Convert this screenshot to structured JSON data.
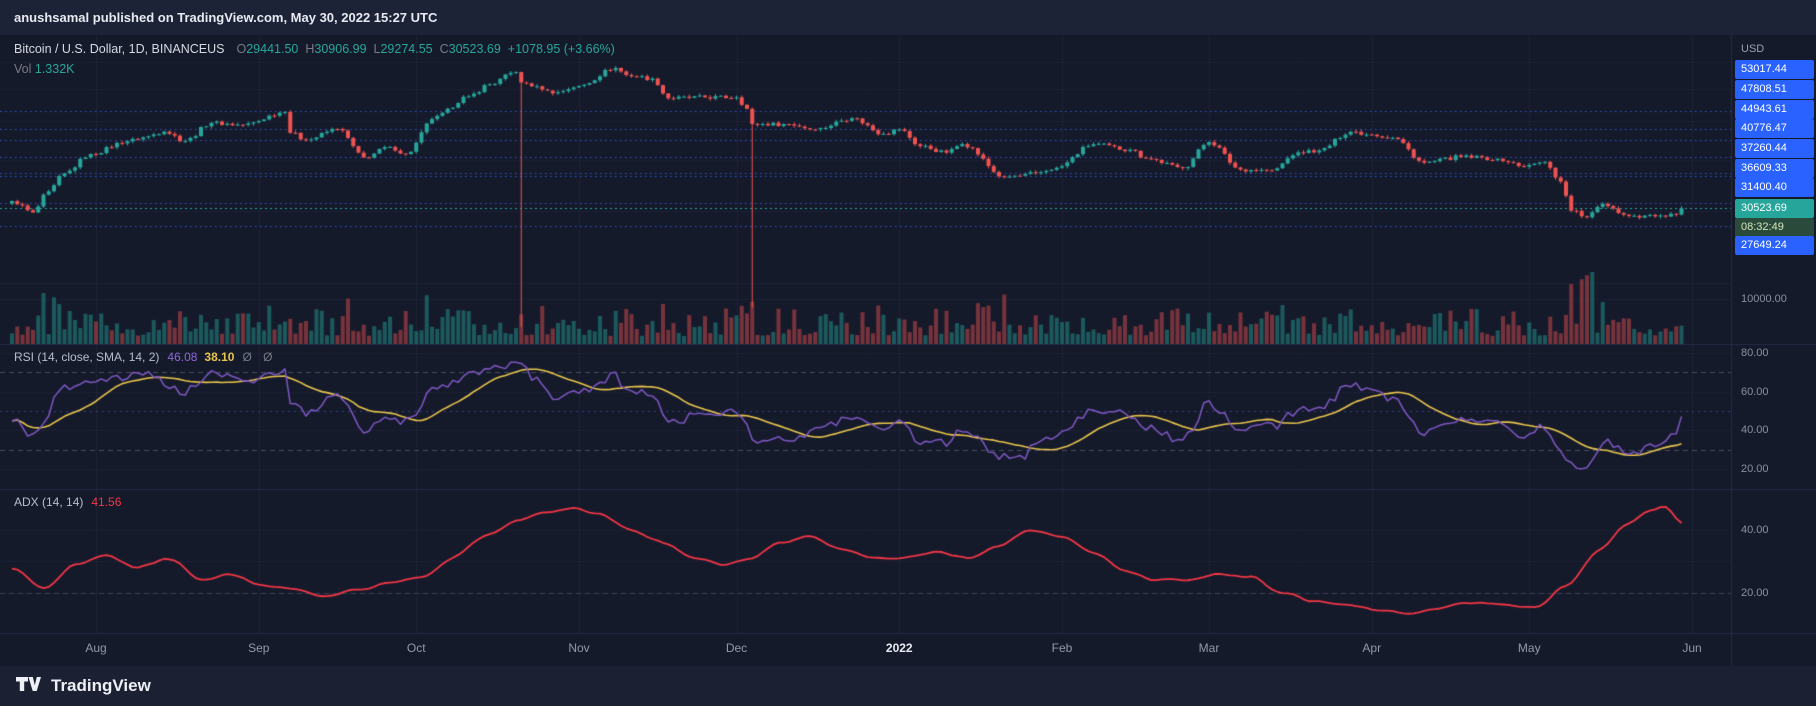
{
  "banner": {
    "text": "anushsamal published on TradingView.com, May 30, 2022 15:27 UTC"
  },
  "legend": {
    "symbol": "Bitcoin / U.S. Dollar, 1D, BINANCEUS",
    "ohlc": [
      {
        "label": "O",
        "value": "29441.50"
      },
      {
        "label": "H",
        "value": "30906.99"
      },
      {
        "label": "L",
        "value": "29274.55"
      },
      {
        "label": "C",
        "value": "30523.69"
      }
    ],
    "change": "+1078.95 (+3.66%)",
    "vol_label": "Vol",
    "vol_value": "1.332K"
  },
  "indicators": {
    "rsi": {
      "title": "RSI (14, close, SMA, 14, 2)",
      "value": "46.08",
      "ma_value": "38.10",
      "hidden": "Ø Ø"
    },
    "adx": {
      "title": "ADX (14, 14)",
      "value": "41.56"
    }
  },
  "axis": {
    "currency": "USD",
    "levels": [
      "53017.44",
      "47808.51",
      "44943.61",
      "40776.47",
      "37260.44",
      "36609.33",
      "31400.40"
    ],
    "last_price": "30523.69",
    "countdown": "08:32:49",
    "level_below": "27649.24",
    "volume_label": "10000.00",
    "rsi_labels": [
      "80.00",
      "60.00",
      "40.00",
      "20.00"
    ],
    "adx_labels": [
      "40.00",
      "20.00"
    ]
  },
  "time_axis": {
    "labels": [
      {
        "text": "Aug",
        "day": 16
      },
      {
        "text": "Sep",
        "day": 47
      },
      {
        "text": "Oct",
        "day": 77
      },
      {
        "text": "Nov",
        "day": 108
      },
      {
        "text": "Dec",
        "day": 138
      },
      {
        "text": "2022",
        "day": 169,
        "major": true
      },
      {
        "text": "Feb",
        "day": 200
      },
      {
        "text": "Mar",
        "day": 228
      },
      {
        "text": "Apr",
        "day": 259
      },
      {
        "text": "May",
        "day": 289
      },
      {
        "text": "Jun",
        "day": 320
      }
    ]
  },
  "footer": {
    "brand": "TradingView"
  },
  "colors": {
    "background": "#151a2b",
    "panel": "#1d2336",
    "up": "#26a69a",
    "down": "#ef5350",
    "accent_badge": "#2962ff",
    "last_badge": "#26a69a",
    "countdown_bg": "#2a4a3c",
    "countdown_text": "#d6e4b6",
    "rsi": "#7e57c2",
    "rsi_ma": "#e8c44c",
    "adx": "#f23645",
    "level_line": "#4866ff",
    "axis_text": "#8b90a0"
  },
  "chart_data": {
    "type": "candlestick",
    "symbol": "BTCUSD",
    "exchange": "BINANCEUS",
    "interval": "1D",
    "start_date": "2021-07-16",
    "end_date": "2022-05-30",
    "days": 319,
    "price_scale": "log",
    "price_range": [
      14150,
      80500
    ],
    "volume_axis_max": 16000,
    "last": {
      "open": 29441.5,
      "high": 30906.99,
      "low": 29274.55,
      "close": 30523.69,
      "change": 1078.95,
      "change_pct": 3.66,
      "volume_k": 1.332
    },
    "level_lines": [
      53017.44,
      47808.51,
      44943.61,
      40776.47,
      37260.44,
      36609.33,
      31400.4,
      27649.24
    ],
    "close_keyframes": [
      [
        0,
        31800
      ],
      [
        4,
        29800
      ],
      [
        7,
        33600
      ],
      [
        10,
        37200
      ],
      [
        15,
        41500
      ],
      [
        22,
        44600
      ],
      [
        25,
        45600
      ],
      [
        29,
        47100
      ],
      [
        33,
        44700
      ],
      [
        38,
        49500
      ],
      [
        44,
        48900
      ],
      [
        52,
        52650
      ],
      [
        53,
        46800
      ],
      [
        56,
        44900
      ],
      [
        62,
        47800
      ],
      [
        67,
        40700
      ],
      [
        72,
        43200
      ],
      [
        75,
        41500
      ],
      [
        81,
        51500
      ],
      [
        87,
        57500
      ],
      [
        91,
        61600
      ],
      [
        96,
        65990
      ],
      [
        97,
        62200
      ],
      [
        100,
        60900
      ],
      [
        103,
        58500
      ],
      [
        108,
        61000
      ],
      [
        115,
        67550
      ],
      [
        117,
        64900
      ],
      [
        122,
        63600
      ],
      [
        125,
        56900
      ],
      [
        132,
        57200
      ],
      [
        138,
        57200
      ],
      [
        140,
        53600
      ],
      [
        141,
        49200
      ],
      [
        148,
        49100
      ],
      [
        153,
        47700
      ],
      [
        160,
        50800
      ],
      [
        166,
        46500
      ],
      [
        169,
        47700
      ],
      [
        173,
        43400
      ],
      [
        178,
        41800
      ],
      [
        181,
        43900
      ],
      [
        189,
        36400
      ],
      [
        192,
        36700
      ],
      [
        195,
        37200
      ],
      [
        199,
        38400
      ],
      [
        206,
        43850
      ],
      [
        213,
        42500
      ],
      [
        216,
        40500
      ],
      [
        223,
        38300
      ],
      [
        228,
        44400
      ],
      [
        234,
        38000
      ],
      [
        240,
        37800
      ],
      [
        245,
        41900
      ],
      [
        249,
        42350
      ],
      [
        255,
        47100
      ],
      [
        259,
        46300
      ],
      [
        263,
        45500
      ],
      [
        269,
        39500
      ],
      [
        276,
        40800
      ],
      [
        283,
        40400
      ],
      [
        288,
        38600
      ],
      [
        292,
        39700
      ],
      [
        295,
        35500
      ],
      [
        297,
        30100
      ],
      [
        300,
        29000
      ],
      [
        303,
        31300
      ],
      [
        308,
        29200
      ],
      [
        314,
        29300
      ],
      [
        317,
        29441.5
      ],
      [
        318,
        30523.69
      ]
    ],
    "anomalies": [
      {
        "day": 97,
        "low": 15600,
        "note": "BinanceUS flash-crash wick"
      },
      {
        "day": 141,
        "low": 17400,
        "note": "Dec sell-off glitch wick"
      }
    ],
    "volume_spikes": {
      "8": 1.5,
      "22": 1.5,
      "38": 1.4,
      "52": 1.6,
      "97": 2.1,
      "141": 2.0,
      "189": 1.5,
      "192": 1.5,
      "228": 1.4,
      "297": 1.8,
      "299": 2.0,
      "300": 2.8,
      "301": 1.9,
      "303": 1.5
    },
    "rsi": {
      "range_shown": [
        10,
        84
      ],
      "bands": [
        70,
        50,
        30
      ],
      "last_value": 46.08,
      "ma_last_value": 38.1,
      "keyframes": [
        [
          0,
          46
        ],
        [
          4,
          36
        ],
        [
          10,
          62
        ],
        [
          15,
          66
        ],
        [
          22,
          67
        ],
        [
          25,
          70
        ],
        [
          33,
          60
        ],
        [
          38,
          70
        ],
        [
          44,
          65
        ],
        [
          52,
          71
        ],
        [
          53,
          54
        ],
        [
          56,
          49
        ],
        [
          62,
          58
        ],
        [
          67,
          40
        ],
        [
          72,
          48
        ],
        [
          75,
          44
        ],
        [
          81,
          63
        ],
        [
          87,
          68
        ],
        [
          91,
          71
        ],
        [
          96,
          75
        ],
        [
          100,
          66
        ],
        [
          103,
          57
        ],
        [
          108,
          60
        ],
        [
          115,
          68
        ],
        [
          117,
          61
        ],
        [
          122,
          58
        ],
        [
          125,
          44
        ],
        [
          132,
          49
        ],
        [
          138,
          50
        ],
        [
          140,
          43
        ],
        [
          141,
          34
        ],
        [
          148,
          35
        ],
        [
          153,
          40
        ],
        [
          160,
          47
        ],
        [
          166,
          40
        ],
        [
          169,
          44
        ],
        [
          173,
          34
        ],
        [
          178,
          33
        ],
        [
          181,
          41
        ],
        [
          189,
          26
        ],
        [
          192,
          25
        ],
        [
          195,
          32
        ],
        [
          199,
          37
        ],
        [
          206,
          51
        ],
        [
          213,
          48
        ],
        [
          216,
          42
        ],
        [
          223,
          35
        ],
        [
          228,
          54
        ],
        [
          234,
          41
        ],
        [
          240,
          42
        ],
        [
          245,
          50
        ],
        [
          249,
          52
        ],
        [
          255,
          63
        ],
        [
          259,
          60
        ],
        [
          263,
          56
        ],
        [
          269,
          39
        ],
        [
          276,
          45
        ],
        [
          283,
          43
        ],
        [
          288,
          38
        ],
        [
          292,
          42
        ],
        [
          295,
          30
        ],
        [
          297,
          23
        ],
        [
          300,
          21
        ],
        [
          303,
          34
        ],
        [
          308,
          28
        ],
        [
          314,
          32
        ],
        [
          317,
          38
        ],
        [
          318,
          46
        ]
      ]
    },
    "adx": {
      "range_shown": [
        8,
        53
      ],
      "last_value": 41.56,
      "keyframes": [
        [
          0,
          28
        ],
        [
          6,
          21
        ],
        [
          12,
          29
        ],
        [
          18,
          32
        ],
        [
          24,
          28
        ],
        [
          30,
          31
        ],
        [
          36,
          24
        ],
        [
          42,
          26
        ],
        [
          48,
          22
        ],
        [
          54,
          21
        ],
        [
          60,
          19
        ],
        [
          66,
          21
        ],
        [
          72,
          23
        ],
        [
          78,
          25
        ],
        [
          84,
          31
        ],
        [
          90,
          38
        ],
        [
          96,
          43
        ],
        [
          102,
          46
        ],
        [
          107,
          47
        ],
        [
          112,
          45
        ],
        [
          118,
          40
        ],
        [
          124,
          36
        ],
        [
          130,
          31
        ],
        [
          136,
          29
        ],
        [
          141,
          31
        ],
        [
          146,
          36
        ],
        [
          152,
          38
        ],
        [
          158,
          34
        ],
        [
          164,
          31
        ],
        [
          170,
          31
        ],
        [
          176,
          33
        ],
        [
          182,
          31
        ],
        [
          188,
          35
        ],
        [
          194,
          40
        ],
        [
          200,
          38
        ],
        [
          206,
          33
        ],
        [
          212,
          27
        ],
        [
          218,
          24
        ],
        [
          224,
          24
        ],
        [
          230,
          26
        ],
        [
          236,
          25
        ],
        [
          242,
          20
        ],
        [
          248,
          17
        ],
        [
          254,
          16
        ],
        [
          260,
          14.5
        ],
        [
          266,
          13.5
        ],
        [
          272,
          15
        ],
        [
          278,
          17
        ],
        [
          284,
          16
        ],
        [
          290,
          15
        ],
        [
          296,
          22
        ],
        [
          302,
          33
        ],
        [
          308,
          42
        ],
        [
          312,
          46.5
        ],
        [
          315,
          48
        ],
        [
          318,
          41.56
        ]
      ]
    }
  }
}
